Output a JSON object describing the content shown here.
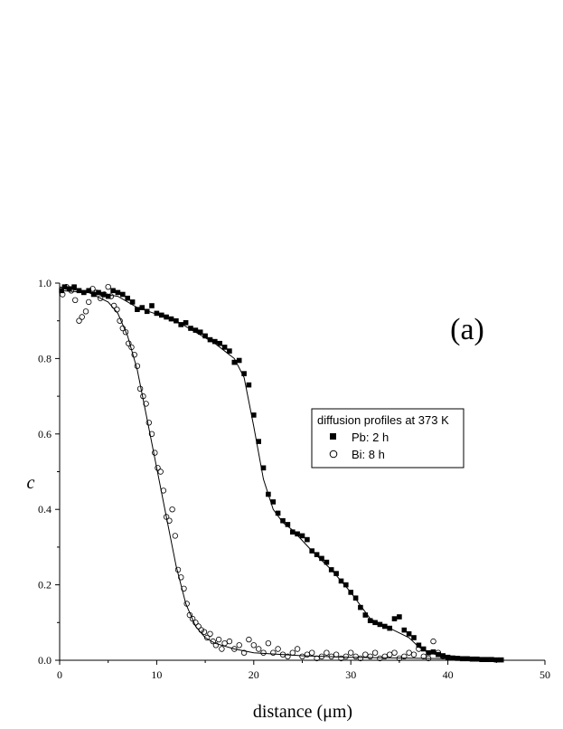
{
  "chart_data": {
    "type": "scatter",
    "title": "",
    "panel_label": "(a)",
    "xlabel": "distance (μm)",
    "ylabel": "c",
    "xlim": [
      0,
      50
    ],
    "ylim": [
      0,
      1.0
    ],
    "xticks": [
      0,
      10,
      20,
      30,
      40,
      50
    ],
    "yticks": [
      0.0,
      0.2,
      0.4,
      0.6,
      0.8,
      1.0
    ],
    "grid": false,
    "legend": {
      "title": "diffusion profiles at 373 K",
      "placement": "right",
      "entries": [
        {
          "label": "Pb: 2 h",
          "marker": "filled-square"
        },
        {
          "label": "Bi:  8 h",
          "marker": "open-circle"
        }
      ]
    },
    "series": [
      {
        "name": "Pb: 2 h",
        "marker": "filled-square",
        "color": "#000000",
        "points": [
          [
            0.2,
            0.98
          ],
          [
            0.5,
            0.99
          ],
          [
            1.0,
            0.985
          ],
          [
            1.5,
            0.99
          ],
          [
            2.0,
            0.98
          ],
          [
            2.5,
            0.975
          ],
          [
            3.0,
            0.98
          ],
          [
            3.5,
            0.97
          ],
          [
            4.0,
            0.975
          ],
          [
            4.5,
            0.97
          ],
          [
            5.0,
            0.965
          ],
          [
            5.5,
            0.98
          ],
          [
            6.0,
            0.975
          ],
          [
            6.5,
            0.97
          ],
          [
            7.0,
            0.96
          ],
          [
            7.5,
            0.95
          ],
          [
            8.0,
            0.93
          ],
          [
            8.5,
            0.935
          ],
          [
            9.0,
            0.925
          ],
          [
            9.5,
            0.94
          ],
          [
            10.0,
            0.92
          ],
          [
            10.5,
            0.915
          ],
          [
            11.0,
            0.91
          ],
          [
            11.5,
            0.905
          ],
          [
            12.0,
            0.9
          ],
          [
            12.5,
            0.89
          ],
          [
            13.0,
            0.895
          ],
          [
            13.5,
            0.88
          ],
          [
            14.0,
            0.875
          ],
          [
            14.5,
            0.87
          ],
          [
            15.0,
            0.86
          ],
          [
            15.5,
            0.85
          ],
          [
            16.0,
            0.845
          ],
          [
            16.5,
            0.84
          ],
          [
            17.0,
            0.83
          ],
          [
            17.5,
            0.82
          ],
          [
            18.0,
            0.79
          ],
          [
            18.5,
            0.795
          ],
          [
            19.0,
            0.76
          ],
          [
            19.5,
            0.73
          ],
          [
            20.0,
            0.65
          ],
          [
            20.5,
            0.58
          ],
          [
            21.0,
            0.51
          ],
          [
            21.5,
            0.44
          ],
          [
            22.0,
            0.42
          ],
          [
            22.5,
            0.39
          ],
          [
            23.0,
            0.37
          ],
          [
            23.5,
            0.36
          ],
          [
            24.0,
            0.34
          ],
          [
            24.5,
            0.335
          ],
          [
            25.0,
            0.33
          ],
          [
            25.5,
            0.32
          ],
          [
            26.0,
            0.29
          ],
          [
            26.5,
            0.28
          ],
          [
            27.0,
            0.27
          ],
          [
            27.5,
            0.26
          ],
          [
            28.0,
            0.24
          ],
          [
            28.5,
            0.23
          ],
          [
            29.0,
            0.21
          ],
          [
            29.5,
            0.2
          ],
          [
            30.0,
            0.18
          ],
          [
            30.5,
            0.165
          ],
          [
            31.0,
            0.14
          ],
          [
            31.5,
            0.12
          ],
          [
            32.0,
            0.105
          ],
          [
            32.5,
            0.1
          ],
          [
            33.0,
            0.095
          ],
          [
            33.5,
            0.09
          ],
          [
            34.0,
            0.085
          ],
          [
            34.5,
            0.11
          ],
          [
            35.0,
            0.115
          ],
          [
            35.5,
            0.08
          ],
          [
            36.0,
            0.07
          ],
          [
            36.5,
            0.06
          ],
          [
            37.0,
            0.04
          ],
          [
            37.5,
            0.03
          ],
          [
            38.0,
            0.02
          ],
          [
            38.5,
            0.022
          ],
          [
            39.0,
            0.015
          ],
          [
            39.5,
            0.012
          ],
          [
            40.0,
            0.008
          ],
          [
            40.5,
            0.006
          ],
          [
            41.0,
            0.005
          ],
          [
            41.5,
            0.004
          ],
          [
            42.0,
            0.004
          ],
          [
            42.5,
            0.003
          ],
          [
            43.0,
            0.003
          ],
          [
            43.5,
            0.002
          ],
          [
            44.0,
            0.002
          ],
          [
            44.5,
            0.002
          ],
          [
            45.0,
            0.001
          ],
          [
            45.5,
            0.001
          ]
        ],
        "fit": [
          [
            0,
            0.98
          ],
          [
            3,
            0.975
          ],
          [
            6,
            0.965
          ],
          [
            8,
            0.935
          ],
          [
            12,
            0.9
          ],
          [
            16,
            0.84
          ],
          [
            18,
            0.8
          ],
          [
            19,
            0.75
          ],
          [
            20,
            0.62
          ],
          [
            21,
            0.48
          ],
          [
            22,
            0.4
          ],
          [
            23,
            0.365
          ],
          [
            24,
            0.345
          ],
          [
            26,
            0.29
          ],
          [
            28,
            0.24
          ],
          [
            30,
            0.18
          ],
          [
            32,
            0.11
          ],
          [
            34,
            0.085
          ],
          [
            36,
            0.06
          ],
          [
            37,
            0.035
          ],
          [
            38,
            0.02
          ],
          [
            40,
            0.008
          ],
          [
            45,
            0.001
          ]
        ]
      },
      {
        "name": "Bi:  8 h",
        "marker": "open-circle",
        "color": "#000000",
        "points": [
          [
            0.3,
            0.97
          ],
          [
            0.7,
            0.99
          ],
          [
            1.2,
            0.98
          ],
          [
            1.6,
            0.955
          ],
          [
            2.0,
            0.9
          ],
          [
            2.3,
            0.91
          ],
          [
            2.7,
            0.925
          ],
          [
            3.0,
            0.95
          ],
          [
            3.4,
            0.985
          ],
          [
            3.8,
            0.975
          ],
          [
            4.2,
            0.96
          ],
          [
            4.6,
            0.97
          ],
          [
            5.0,
            0.99
          ],
          [
            5.3,
            0.965
          ],
          [
            5.6,
            0.94
          ],
          [
            5.9,
            0.93
          ],
          [
            6.2,
            0.9
          ],
          [
            6.5,
            0.88
          ],
          [
            6.8,
            0.87
          ],
          [
            7.1,
            0.84
          ],
          [
            7.4,
            0.83
          ],
          [
            7.7,
            0.81
          ],
          [
            8.0,
            0.78
          ],
          [
            8.3,
            0.72
          ],
          [
            8.6,
            0.7
          ],
          [
            8.9,
            0.68
          ],
          [
            9.2,
            0.63
          ],
          [
            9.5,
            0.6
          ],
          [
            9.8,
            0.55
          ],
          [
            10.1,
            0.51
          ],
          [
            10.4,
            0.5
          ],
          [
            10.7,
            0.45
          ],
          [
            11.0,
            0.38
          ],
          [
            11.3,
            0.37
          ],
          [
            11.6,
            0.4
          ],
          [
            11.9,
            0.33
          ],
          [
            12.2,
            0.24
          ],
          [
            12.5,
            0.22
          ],
          [
            12.8,
            0.19
          ],
          [
            13.1,
            0.15
          ],
          [
            13.4,
            0.12
          ],
          [
            13.7,
            0.11
          ],
          [
            14.0,
            0.1
          ],
          [
            14.3,
            0.09
          ],
          [
            14.6,
            0.08
          ],
          [
            14.9,
            0.075
          ],
          [
            15.2,
            0.06
          ],
          [
            15.5,
            0.07
          ],
          [
            15.8,
            0.05
          ],
          [
            16.1,
            0.04
          ],
          [
            16.4,
            0.055
          ],
          [
            16.7,
            0.03
          ],
          [
            17.0,
            0.045
          ],
          [
            17.5,
            0.05
          ],
          [
            18.0,
            0.03
          ],
          [
            18.5,
            0.04
          ],
          [
            19.0,
            0.02
          ],
          [
            19.5,
            0.055
          ],
          [
            20.0,
            0.04
          ],
          [
            20.5,
            0.03
          ],
          [
            21.0,
            0.02
          ],
          [
            21.5,
            0.045
          ],
          [
            22.0,
            0.02
          ],
          [
            22.5,
            0.03
          ],
          [
            23.0,
            0.015
          ],
          [
            23.5,
            0.01
          ],
          [
            24.0,
            0.02
          ],
          [
            24.5,
            0.03
          ],
          [
            25.0,
            0.01
          ],
          [
            25.5,
            0.015
          ],
          [
            26.0,
            0.02
          ],
          [
            26.5,
            0.005
          ],
          [
            27.0,
            0.01
          ],
          [
            27.5,
            0.02
          ],
          [
            28.0,
            0.01
          ],
          [
            28.5,
            0.015
          ],
          [
            29.0,
            0.005
          ],
          [
            29.5,
            0.01
          ],
          [
            30.0,
            0.02
          ],
          [
            30.5,
            0.01
          ],
          [
            31.0,
            0.005
          ],
          [
            31.5,
            0.015
          ],
          [
            32.0,
            0.01
          ],
          [
            32.5,
            0.02
          ],
          [
            33.0,
            0.005
          ],
          [
            33.5,
            0.01
          ],
          [
            34.0,
            0.015
          ],
          [
            34.5,
            0.02
          ],
          [
            35.0,
            0.005
          ],
          [
            35.5,
            0.01
          ],
          [
            36.0,
            0.02
          ],
          [
            36.5,
            0.015
          ],
          [
            37.0,
            0.03
          ],
          [
            37.5,
            0.01
          ],
          [
            38.0,
            0.005
          ],
          [
            38.5,
            0.05
          ],
          [
            39.0,
            0.02
          ],
          [
            39.5,
            0.01
          ]
        ],
        "fit": [
          [
            0,
            0.99
          ],
          [
            3,
            0.975
          ],
          [
            5,
            0.95
          ],
          [
            6,
            0.92
          ],
          [
            7,
            0.86
          ],
          [
            8,
            0.77
          ],
          [
            9,
            0.64
          ],
          [
            10,
            0.51
          ],
          [
            11,
            0.38
          ],
          [
            12,
            0.25
          ],
          [
            13,
            0.15
          ],
          [
            14,
            0.09
          ],
          [
            15,
            0.06
          ],
          [
            16,
            0.045
          ],
          [
            18,
            0.03
          ],
          [
            20,
            0.02
          ],
          [
            25,
            0.012
          ],
          [
            30,
            0.008
          ],
          [
            35,
            0.006
          ],
          [
            40,
            0.004
          ]
        ]
      }
    ]
  }
}
